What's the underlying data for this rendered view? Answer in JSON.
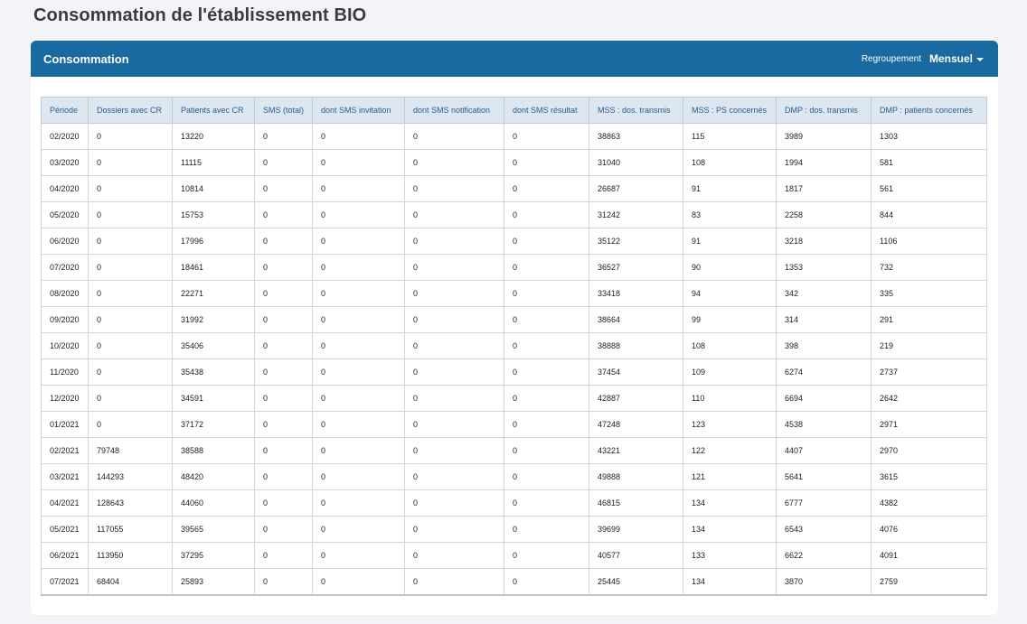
{
  "page": {
    "title": "Consommation de l'établissement BIO"
  },
  "panel": {
    "title": "Consommation",
    "grouping_label": "Regroupement",
    "grouping_value": "Mensuel"
  },
  "table": {
    "columns": [
      "Période",
      "Dossiers avec CR",
      "Patients avec CR",
      "SMS (total)",
      "dont SMS invitation",
      "dont SMS notification",
      "dont SMS résultat",
      "MSS : dos. transmis",
      "MSS : PS concernés",
      "DMP : dos. transmis",
      "DMP : patients concernés"
    ],
    "rows": [
      [
        "02/2020",
        "0",
        "13220",
        "0",
        "0",
        "0",
        "0",
        "38863",
        "115",
        "3989",
        "1303"
      ],
      [
        "03/2020",
        "0",
        "11115",
        "0",
        "0",
        "0",
        "0",
        "31040",
        "108",
        "1994",
        "581"
      ],
      [
        "04/2020",
        "0",
        "10814",
        "0",
        "0",
        "0",
        "0",
        "26687",
        "91",
        "1817",
        "561"
      ],
      [
        "05/2020",
        "0",
        "15753",
        "0",
        "0",
        "0",
        "0",
        "31242",
        "83",
        "2258",
        "844"
      ],
      [
        "06/2020",
        "0",
        "17996",
        "0",
        "0",
        "0",
        "0",
        "35122",
        "91",
        "3218",
        "1106"
      ],
      [
        "07/2020",
        "0",
        "18461",
        "0",
        "0",
        "0",
        "0",
        "36527",
        "90",
        "1353",
        "732"
      ],
      [
        "08/2020",
        "0",
        "22271",
        "0",
        "0",
        "0",
        "0",
        "33418",
        "94",
        "342",
        "335"
      ],
      [
        "09/2020",
        "0",
        "31992",
        "0",
        "0",
        "0",
        "0",
        "38664",
        "99",
        "314",
        "291"
      ],
      [
        "10/2020",
        "0",
        "35406",
        "0",
        "0",
        "0",
        "0",
        "38888",
        "108",
        "398",
        "219"
      ],
      [
        "11/2020",
        "0",
        "35438",
        "0",
        "0",
        "0",
        "0",
        "37454",
        "109",
        "6274",
        "2737"
      ],
      [
        "12/2020",
        "0",
        "34591",
        "0",
        "0",
        "0",
        "0",
        "42887",
        "110",
        "6694",
        "2642"
      ],
      [
        "01/2021",
        "0",
        "37172",
        "0",
        "0",
        "0",
        "0",
        "47248",
        "123",
        "4538",
        "2971"
      ],
      [
        "02/2021",
        "79748",
        "38588",
        "0",
        "0",
        "0",
        "0",
        "43221",
        "122",
        "4407",
        "2970"
      ],
      [
        "03/2021",
        "144293",
        "48420",
        "0",
        "0",
        "0",
        "0",
        "49888",
        "121",
        "5641",
        "3615"
      ],
      [
        "04/2021",
        "128643",
        "44060",
        "0",
        "0",
        "0",
        "0",
        "46815",
        "134",
        "6777",
        "4382"
      ],
      [
        "05/2021",
        "117055",
        "39565",
        "0",
        "0",
        "0",
        "0",
        "39699",
        "134",
        "6543",
        "4076"
      ],
      [
        "06/2021",
        "113950",
        "37295",
        "0",
        "0",
        "0",
        "0",
        "40577",
        "133",
        "6622",
        "4091"
      ],
      [
        "07/2021",
        "68404",
        "25893",
        "0",
        "0",
        "0",
        "0",
        "25445",
        "134",
        "3870",
        "2759"
      ]
    ]
  }
}
